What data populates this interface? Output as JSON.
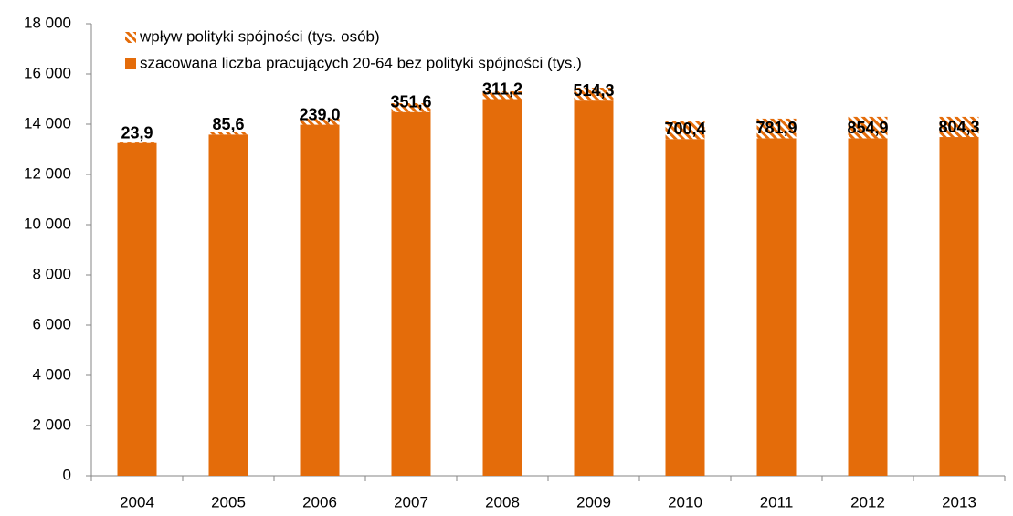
{
  "chart_data": {
    "type": "stacked_bar",
    "categories": [
      "2004",
      "2005",
      "2006",
      "2007",
      "2008",
      "2009",
      "2010",
      "2011",
      "2012",
      "2013"
    ],
    "series": [
      {
        "name": "wpływ polityki spójności (tys. osób)",
        "color": "#e46c0a",
        "pattern": "hatch",
        "values": [
          23.9,
          85.6,
          239.0,
          351.6,
          311.2,
          514.3,
          700.4,
          781.9,
          854.9,
          804.3
        ],
        "value_labels": [
          "23,9",
          "85,6",
          "239,0",
          "351,6",
          "311,2",
          "514,3",
          "700,4",
          "781,9",
          "854,9",
          "804,3"
        ]
      },
      {
        "name": "szacowana liczba pracujących 20-64 bez polityki spójności (tys.)",
        "color": "#e46c0a",
        "values": [
          13250,
          13590,
          13980,
          14485,
          15000,
          14940,
          13410,
          13440,
          13440,
          13490
        ]
      }
    ],
    "stack_order": [
      1,
      0
    ],
    "ylim": [
      0,
      18000
    ],
    "yticks": [
      0,
      {
        "value": 2000,
        "label": "2 000"
      },
      {
        "value": 4000,
        "label": "4 000"
      },
      {
        "value": 6000,
        "label": "6 000"
      },
      {
        "value": 8000,
        "label": "8 000"
      },
      {
        "value": 10000,
        "label": "10 000"
      },
      {
        "value": 12000,
        "label": "12 000"
      },
      {
        "value": 14000,
        "label": "14 000"
      },
      {
        "value": 16000,
        "label": "16 000"
      },
      {
        "value": 18000,
        "label": "18 000"
      }
    ],
    "grid": false,
    "legend": "top-left"
  }
}
